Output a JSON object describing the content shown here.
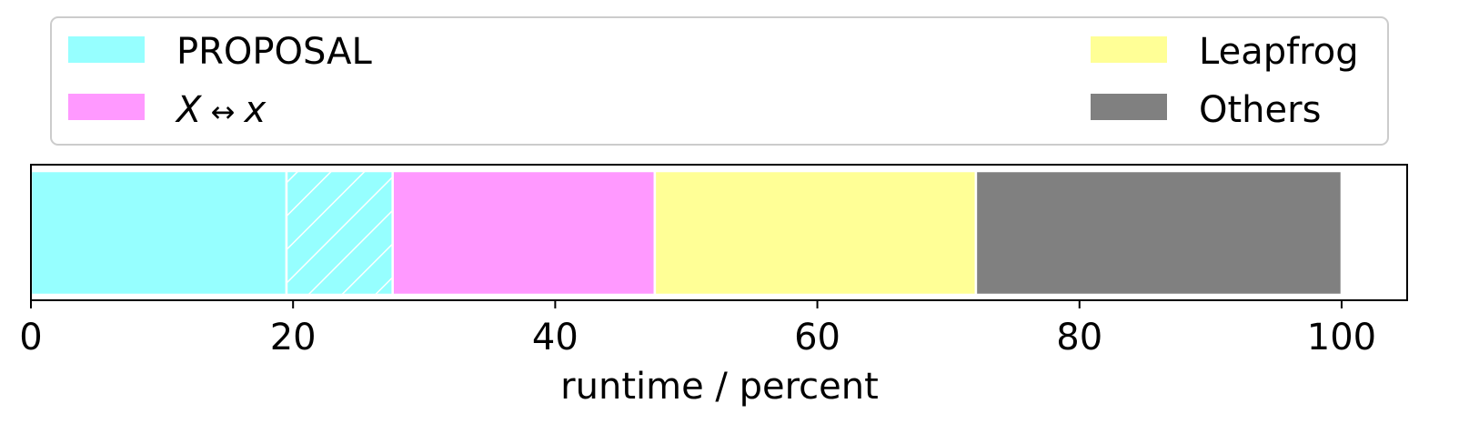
{
  "chart_data": {
    "type": "bar",
    "orientation": "horizontal-stacked",
    "xlabel": "runtime / percent",
    "xlim": [
      0,
      105
    ],
    "xticks": [
      0,
      20,
      40,
      60,
      80,
      100
    ],
    "xtick_labels": [
      "0",
      "20",
      "40",
      "60",
      "80",
      "100"
    ],
    "grid": false,
    "legend_placement": "top",
    "segments": [
      {
        "start": 0,
        "end": 19.5,
        "color": "#96ffff",
        "hatch": false
      },
      {
        "start": 19.5,
        "end": 27.6,
        "color": "#96ffff",
        "hatch": true
      },
      {
        "start": 27.6,
        "end": 47.6,
        "color": "#ff99ff",
        "hatch": false
      },
      {
        "start": 47.6,
        "end": 72.1,
        "color": "#ffff96",
        "hatch": false
      },
      {
        "start": 72.1,
        "end": 100,
        "color": "#808080",
        "hatch": false
      }
    ],
    "legend": [
      {
        "label": "PROPOSAL",
        "color": "#96ffff"
      },
      {
        "label_main": "X",
        "label_arrow": " ↔ ",
        "label_sub": "x",
        "color": "#ff99ff"
      },
      {
        "label": "Leapfrog",
        "color": "#ffff96"
      },
      {
        "label": "Others",
        "color": "#808080"
      }
    ]
  }
}
